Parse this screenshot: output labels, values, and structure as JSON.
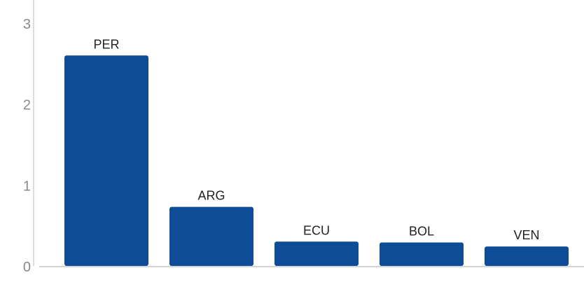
{
  "chart_data": {
    "type": "bar",
    "categories": [
      "PER",
      "ARG",
      "ECU",
      "BOL",
      "VEN"
    ],
    "values": [
      2.6,
      0.73,
      0.3,
      0.29,
      0.24
    ],
    "title": "",
    "xlabel": "",
    "ylabel": "",
    "ylim": [
      0,
      3
    ],
    "yticks": [
      "0",
      "1",
      "2",
      "3"
    ],
    "grid": false,
    "legend": "none",
    "colors": {
      "bar": "#0f4c96",
      "axis": "#d4d4d4",
      "tick_text": "#8a8a8a",
      "label_text": "#222222"
    }
  }
}
